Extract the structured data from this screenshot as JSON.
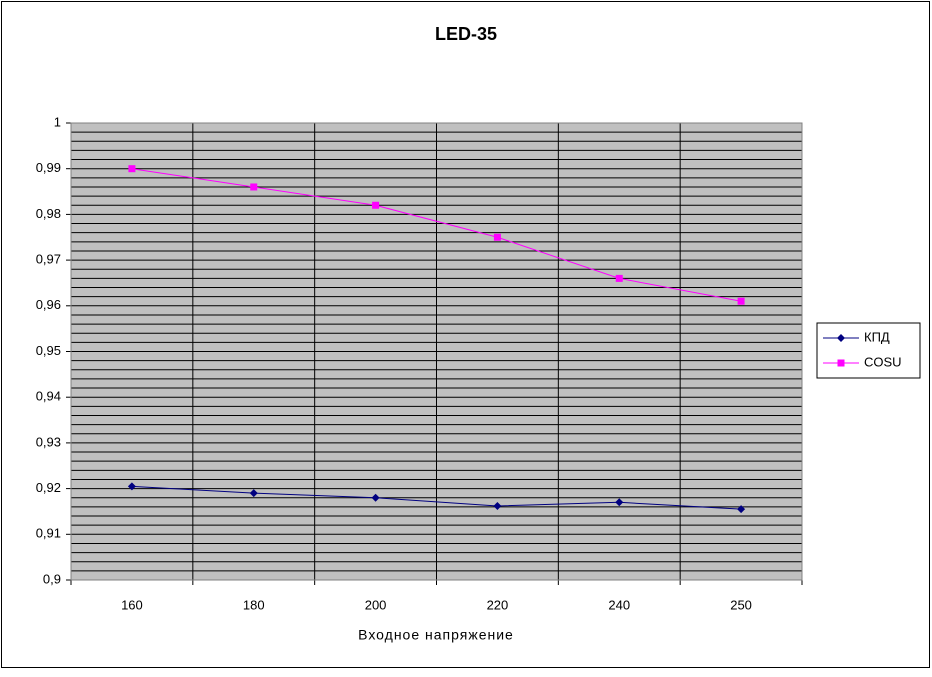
{
  "chart_data": {
    "type": "line",
    "title": "LED-35",
    "x_label": "Входное напряжение",
    "categories": [
      "160",
      "180",
      "200",
      "220",
      "240",
      "250"
    ],
    "series": [
      {
        "name": "КПД",
        "color": "#000080",
        "marker": "diamond",
        "values": [
          0.9205,
          0.919,
          0.918,
          0.9162,
          0.917,
          0.9155
        ]
      },
      {
        "name": "COSU",
        "color": "#ff00ff",
        "marker": "square",
        "values": [
          0.99,
          0.986,
          0.982,
          0.975,
          0.966,
          0.961
        ]
      }
    ],
    "ylim": [
      0.9,
      1
    ],
    "yticks": [
      {
        "value": 0.9,
        "label": "0,9"
      },
      {
        "value": 0.91,
        "label": "0,91"
      },
      {
        "value": 0.92,
        "label": "0,92"
      },
      {
        "value": 0.93,
        "label": "0,93"
      },
      {
        "value": 0.94,
        "label": "0,94"
      },
      {
        "value": 0.95,
        "label": "0,95"
      },
      {
        "value": 0.96,
        "label": "0,96"
      },
      {
        "value": 0.97,
        "label": "0,97"
      },
      {
        "value": 0.98,
        "label": "0,98"
      },
      {
        "value": 0.99,
        "label": "0,99"
      },
      {
        "value": 1,
        "label": "1"
      }
    ],
    "grid": true,
    "minor_grid_divisions": 5,
    "plot_background": "#c0c0c0",
    "legend": "right"
  }
}
